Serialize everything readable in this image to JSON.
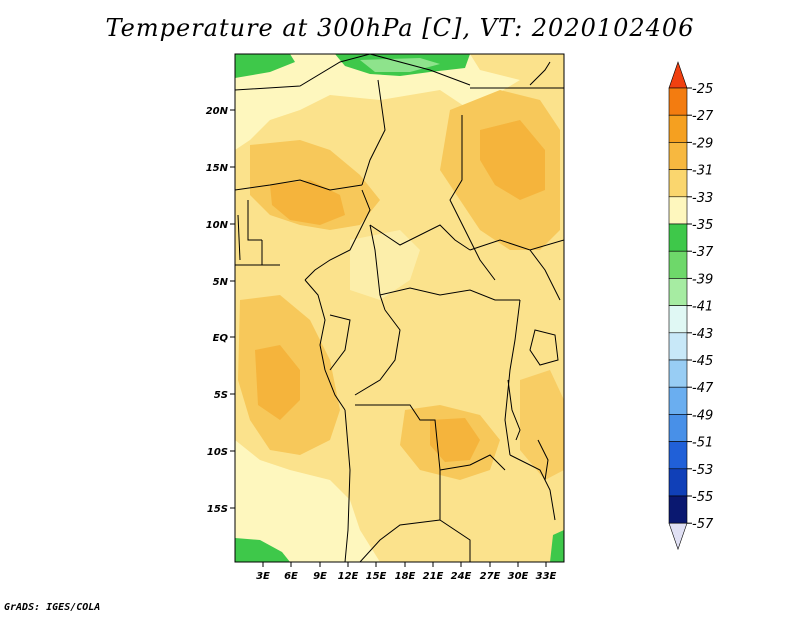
{
  "title": "Temperature at 300hPa [C], VT: 2020102406",
  "credit": "GrADS: IGES/COLA",
  "map": {
    "lat_ticks": [
      "20N",
      "15N",
      "10N",
      "5N",
      "EQ",
      "5S",
      "10S",
      "15S"
    ],
    "lon_ticks": [
      "3E",
      "6E",
      "9E",
      "12E",
      "15E",
      "18E",
      "21E",
      "24E",
      "27E",
      "30E",
      "33E"
    ],
    "base_color": "#fbe28c",
    "colors": {
      "lightest": "#fef7be",
      "pale": "#fbe28c",
      "mid": "#f7c85a",
      "orange": "#f5b43c",
      "green": "#3ec84a",
      "lightgreen": "#8ee38c"
    }
  },
  "colorbar": {
    "labels": [
      "-25",
      "-27",
      "-29",
      "-31",
      "-33",
      "-35",
      "-37",
      "-39",
      "-41",
      "-43",
      "-45",
      "-47",
      "-49",
      "-51",
      "-53",
      "-55",
      "-57"
    ],
    "colors": [
      "#f04010",
      "#f37c10",
      "#f5a020",
      "#f7b840",
      "#fad66e",
      "#fef7be",
      "#3ec84a",
      "#6ed86a",
      "#a6eca2",
      "#e0f8f4",
      "#c8e8f8",
      "#98cdf4",
      "#6aaef0",
      "#4890e8",
      "#2060d8",
      "#1040b8",
      "#0a1870",
      "#e0e0f4"
    ]
  }
}
